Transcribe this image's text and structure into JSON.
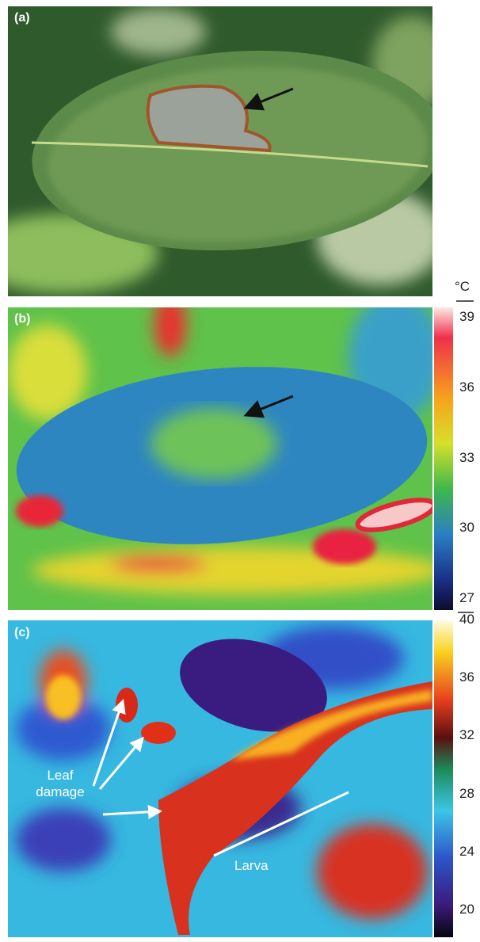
{
  "panels": [
    {
      "label": "(a)"
    },
    {
      "label": "(b)",
      "colorbar": {
        "unit": "°C",
        "ticks": [
          39,
          36,
          33,
          30,
          27
        ]
      }
    },
    {
      "label": "(c)",
      "annotations": [
        "Leaf damage",
        "Larva"
      ],
      "colorbar": {
        "ticks": [
          40,
          36,
          32,
          28,
          24,
          20
        ]
      }
    }
  ]
}
